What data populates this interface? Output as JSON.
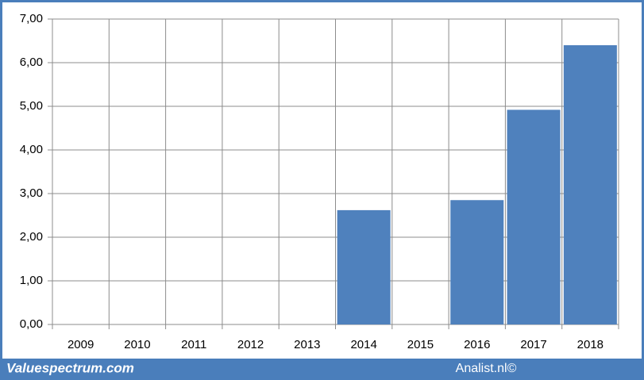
{
  "chart_data": {
    "type": "bar",
    "categories": [
      "2009",
      "2010",
      "2011",
      "2012",
      "2013",
      "2014",
      "2015",
      "2016",
      "2017",
      "2018"
    ],
    "values": [
      null,
      null,
      null,
      null,
      null,
      2.62,
      null,
      2.85,
      4.92,
      6.4
    ],
    "color": "#4f81bd",
    "ylim": [
      0,
      7
    ],
    "yticks": [
      {
        "value": 0,
        "label": "0,00"
      },
      {
        "value": 1,
        "label": "1,00"
      },
      {
        "value": 2,
        "label": "2,00"
      },
      {
        "value": 3,
        "label": "3,00"
      },
      {
        "value": 4,
        "label": "4,00"
      },
      {
        "value": 5,
        "label": "5,00"
      },
      {
        "value": 6,
        "label": "6,00"
      },
      {
        "value": 7,
        "label": "7,00"
      }
    ],
    "grid": true
  },
  "footer": {
    "left": "Valuespectrum.com",
    "right": "Analist.nl©"
  }
}
